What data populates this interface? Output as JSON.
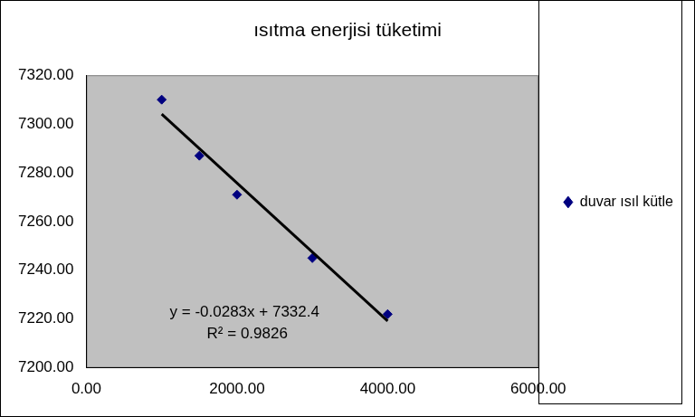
{
  "chart_data": {
    "type": "scatter",
    "title": "ısıtma enerjisi tüketimi",
    "annotations": [
      "y = -0.0283x + 7332.4",
      "R² = 0.9826"
    ],
    "series": [
      {
        "name": "duvar ısıl kütle",
        "color": "#000080",
        "marker": "diamond",
        "x": [
          1000,
          1500,
          2000,
          3000,
          4000
        ],
        "values": [
          7310,
          7287,
          7271,
          7245,
          7222
        ]
      },
      {
        "type": "line",
        "color": "#000000",
        "line_style": "solid",
        "x": [
          1000,
          4000
        ],
        "values": [
          7304.1,
          7219.2
        ]
      }
    ],
    "xlim": [
      0,
      6000
    ],
    "xticks": [
      {
        "value": 0,
        "label": "0.00"
      },
      {
        "value": 2000,
        "label": "2000.00"
      },
      {
        "value": 4000,
        "label": "4000.00"
      },
      {
        "value": 6000,
        "label": "6000.00"
      }
    ],
    "ylim": [
      7200,
      7320
    ],
    "yticks": [
      {
        "value": 7200,
        "label": "7200.00"
      },
      {
        "value": 7220,
        "label": "7220.00"
      },
      {
        "value": 7240,
        "label": "7240.00"
      },
      {
        "value": 7260,
        "label": "7260.00"
      },
      {
        "value": 7280,
        "label": "7280.00"
      },
      {
        "value": 7300,
        "label": "7300.00"
      },
      {
        "value": 7320,
        "label": "7320.00"
      }
    ],
    "grid": false,
    "legend": "right"
  }
}
